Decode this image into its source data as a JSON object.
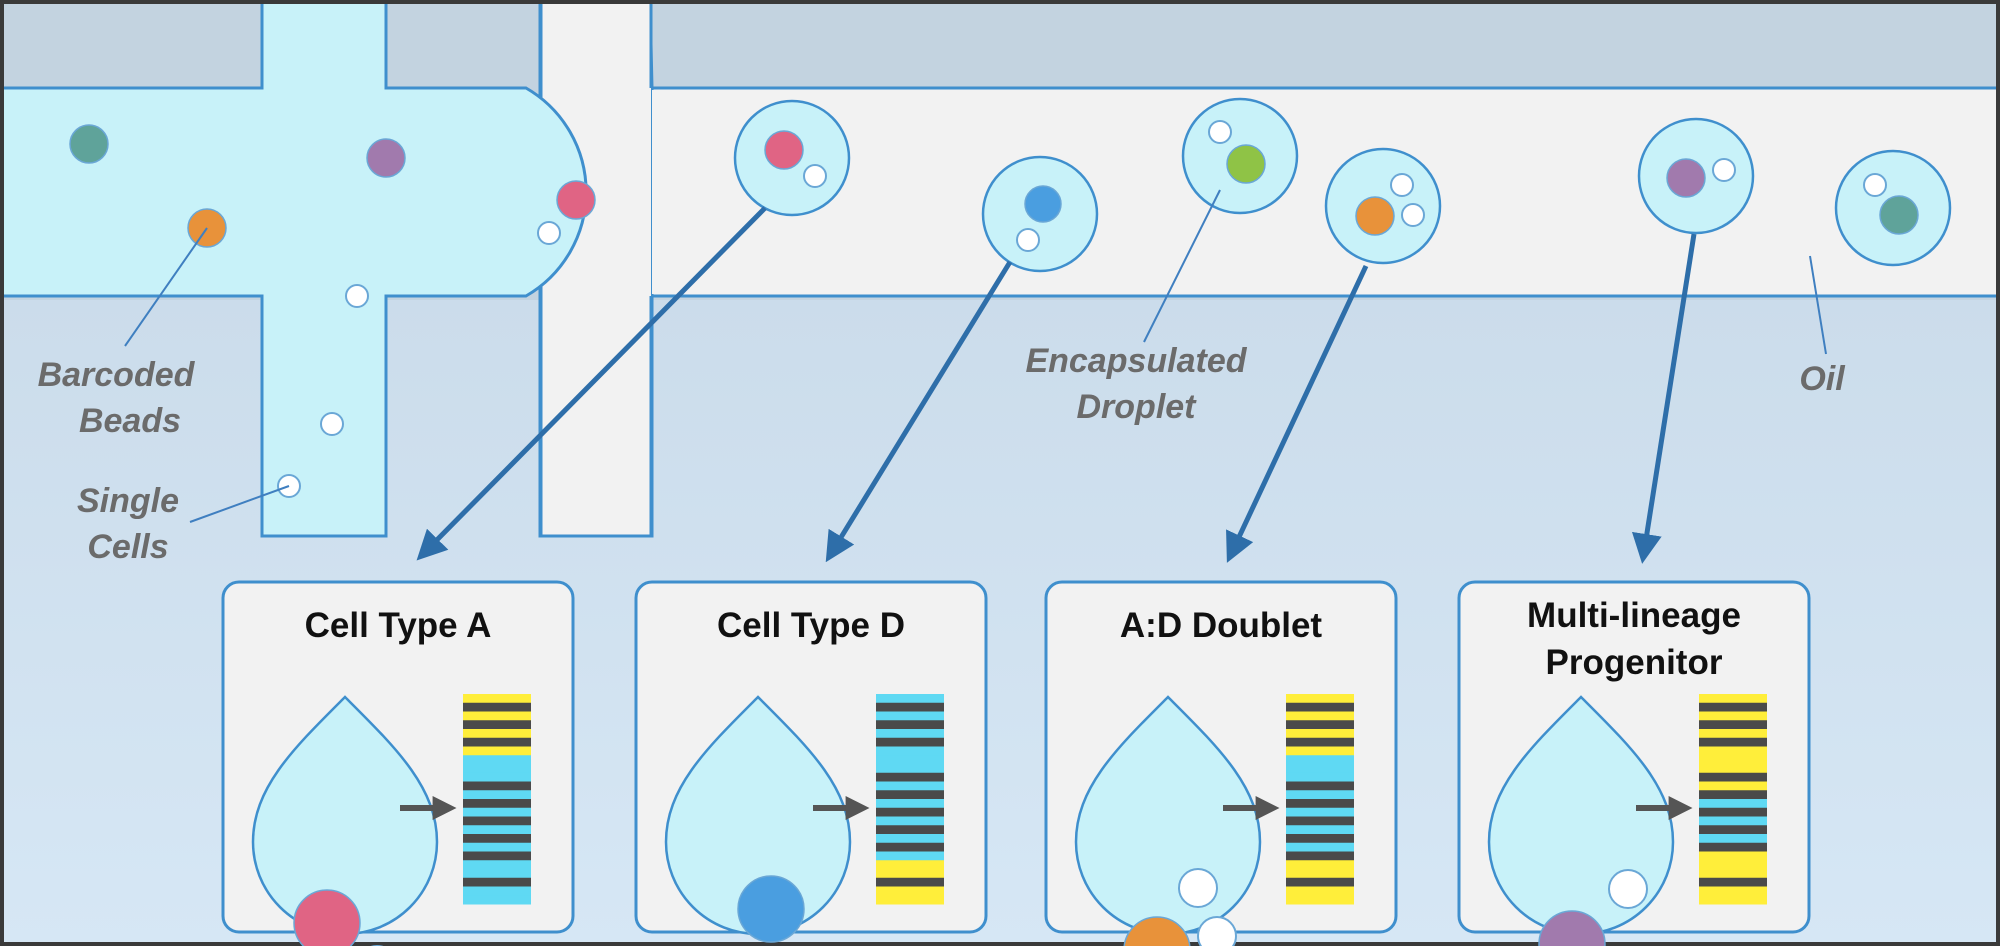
{
  "colors": {
    "channel_fill": "#c8f2f9",
    "channel_stroke": "#3f8fcd",
    "substrate_dark": "#c3d3e0",
    "substrate_light": "#d5e5f2",
    "oil_channel": "#f2f2f2",
    "arrow": "#2e6ea9",
    "barcode_cyan": "#5fd9f3",
    "barcode_yellow": "#ffee3a",
    "barcode_dark": "#4a4a4a"
  },
  "cell_colors": {
    "teal": "#5fa39a",
    "purple": "#a17aad",
    "orange": "#e8923a",
    "pink": "#e06484",
    "blue": "#4a9ee0",
    "green": "#8fc346",
    "white": "#ffffff"
  },
  "labels": {
    "barcoded_beads": [
      "Barcoded",
      "Beads"
    ],
    "single_cells": [
      "Single",
      "Cells"
    ],
    "encapsulated_droplet": [
      "Encapsulated",
      "Droplet"
    ],
    "oil": "Oil"
  },
  "boxes": [
    {
      "title_lines": [
        "Cell Type A"
      ],
      "cell_color": "pink",
      "barcode": "A"
    },
    {
      "title_lines": [
        "Cell Type D"
      ],
      "cell_color": "blue",
      "barcode": "D"
    },
    {
      "title_lines": [
        "A:D Doublet"
      ],
      "cell_color": "orange",
      "barcode": "AD"
    },
    {
      "title_lines": [
        "Multi-lineage",
        "Progenitor"
      ],
      "cell_color": "purple",
      "barcode": "ML"
    }
  ]
}
